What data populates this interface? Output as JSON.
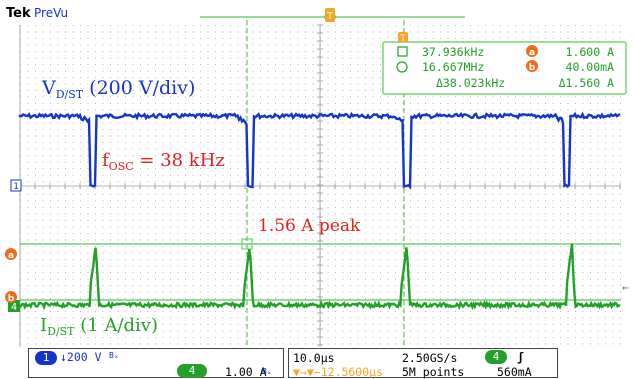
{
  "header": {
    "brand": "Tek",
    "mode": "PreVu"
  },
  "annotations": {
    "ch1_label_main": "V",
    "ch1_label_sub": "D/ST",
    "ch1_label_rest": " (200 V/div)",
    "fosc_main": "f",
    "fosc_sub": "OSC",
    "fosc_rest": " = 38 kHz",
    "peak": "1.56 A peak",
    "ch4_label_main": "I",
    "ch4_label_sub": "D/ST",
    "ch4_label_rest": " (1 A/div)"
  },
  "cursor_readout": {
    "row1_left": "37.936kHz",
    "row1_badge": "a",
    "row1_right": "1.600 A",
    "row2_left": "16.667MHz",
    "row2_badge": "b",
    "row2_right": "40.00mA",
    "row3_left": "Δ38.023kHz",
    "row3_right": "Δ1.560 A"
  },
  "markers": {
    "ch1": "1",
    "ch4": "4",
    "cursor_a": "a",
    "cursor_b": "b",
    "trigger_top": "T",
    "cursor_box_top": "T"
  },
  "status_bar": {
    "ch1_badge": "1",
    "ch1_scale": "↓200 V",
    "ch1_bw": "Bₓ",
    "ch4_badge": "4",
    "ch4_scale": "1.00 A",
    "ch4_bw": "Bₓ",
    "timebase": "10.0µs",
    "sample_rate": "2.50GS/s",
    "trigger_badge": "4",
    "trigger_slope": "ʃ",
    "position": "▼→▼−12.5600µs",
    "record_length": "5M points",
    "trigger_level": "560mA"
  },
  "colors": {
    "ch1": "#1535c8",
    "ch4": "#22a02a",
    "cursor": "#5cc85c",
    "badge_orange": "#f26a1b",
    "trigger_orange": "#f5a623",
    "grid": "#b8b8b8",
    "annotation_red": "#e0221e"
  }
}
